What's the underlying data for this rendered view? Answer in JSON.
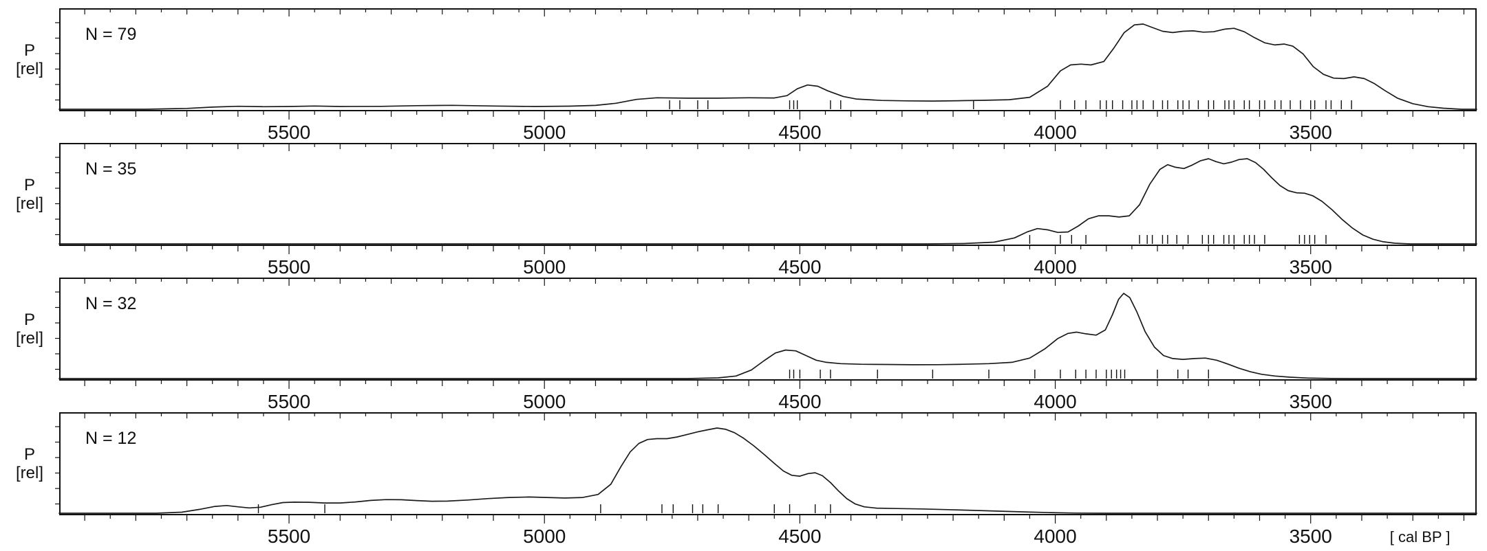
{
  "figure": {
    "xlabel": "[ cal BP ]",
    "ylabel_line1": "P",
    "ylabel_line2": "[rel]",
    "x_min": 5950,
    "x_max": 3175,
    "x_major_ticks": [
      5500,
      5000,
      4500,
      4000,
      3500
    ],
    "minor_tick_step": 50,
    "curve_color": "#1a1a1a",
    "axis_color": "#111111"
  },
  "chart_data": [
    {
      "type": "area",
      "n_label": "N = 79",
      "n": 79,
      "curve": [
        [
          5950,
          0
        ],
        [
          5780,
          0
        ],
        [
          5700,
          0.01
        ],
        [
          5650,
          0.025
        ],
        [
          5600,
          0.035
        ],
        [
          5550,
          0.03
        ],
        [
          5500,
          0.032
        ],
        [
          5450,
          0.038
        ],
        [
          5400,
          0.032
        ],
        [
          5320,
          0.034
        ],
        [
          5250,
          0.042
        ],
        [
          5180,
          0.046
        ],
        [
          5100,
          0.038
        ],
        [
          5020,
          0.032
        ],
        [
          4950,
          0.036
        ],
        [
          4900,
          0.045
        ],
        [
          4860,
          0.07
        ],
        [
          4820,
          0.115
        ],
        [
          4780,
          0.135
        ],
        [
          4720,
          0.13
        ],
        [
          4660,
          0.13
        ],
        [
          4600,
          0.135
        ],
        [
          4550,
          0.132
        ],
        [
          4525,
          0.16
        ],
        [
          4505,
          0.24
        ],
        [
          4485,
          0.285
        ],
        [
          4465,
          0.27
        ],
        [
          4445,
          0.215
        ],
        [
          4415,
          0.15
        ],
        [
          4390,
          0.12
        ],
        [
          4340,
          0.103
        ],
        [
          4290,
          0.098
        ],
        [
          4240,
          0.096
        ],
        [
          4190,
          0.1
        ],
        [
          4140,
          0.105
        ],
        [
          4090,
          0.112
        ],
        [
          4050,
          0.14
        ],
        [
          4015,
          0.27
        ],
        [
          3990,
          0.45
        ],
        [
          3970,
          0.52
        ],
        [
          3950,
          0.53
        ],
        [
          3930,
          0.52
        ],
        [
          3905,
          0.56
        ],
        [
          3885,
          0.72
        ],
        [
          3865,
          0.9
        ],
        [
          3845,
          0.99
        ],
        [
          3828,
          1.0
        ],
        [
          3810,
          0.96
        ],
        [
          3790,
          0.915
        ],
        [
          3770,
          0.9
        ],
        [
          3750,
          0.915
        ],
        [
          3730,
          0.92
        ],
        [
          3710,
          0.905
        ],
        [
          3690,
          0.91
        ],
        [
          3668,
          0.94
        ],
        [
          3650,
          0.95
        ],
        [
          3630,
          0.91
        ],
        [
          3610,
          0.84
        ],
        [
          3590,
          0.78
        ],
        [
          3570,
          0.755
        ],
        [
          3552,
          0.765
        ],
        [
          3535,
          0.74
        ],
        [
          3515,
          0.65
        ],
        [
          3495,
          0.5
        ],
        [
          3475,
          0.41
        ],
        [
          3455,
          0.365
        ],
        [
          3435,
          0.36
        ],
        [
          3415,
          0.38
        ],
        [
          3395,
          0.36
        ],
        [
          3375,
          0.3
        ],
        [
          3355,
          0.22
        ],
        [
          3330,
          0.13
        ],
        [
          3300,
          0.065
        ],
        [
          3270,
          0.03
        ],
        [
          3240,
          0.012
        ],
        [
          3205,
          0
        ],
        [
          3175,
          0
        ]
      ],
      "rug": [
        4755,
        4735,
        4700,
        4680,
        4520,
        4512,
        4505,
        4440,
        4420,
        4160,
        3990,
        3962,
        3940,
        3912,
        3900,
        3888,
        3868,
        3850,
        3840,
        3828,
        3808,
        3790,
        3780,
        3760,
        3750,
        3738,
        3720,
        3700,
        3690,
        3668,
        3660,
        3650,
        3630,
        3620,
        3600,
        3590,
        3570,
        3558,
        3540,
        3520,
        3500,
        3492,
        3470,
        3460,
        3440,
        3420
      ]
    },
    {
      "type": "area",
      "n_label": "N = 35",
      "n": 35,
      "curve": [
        [
          5950,
          0
        ],
        [
          4250,
          0
        ],
        [
          4180,
          0.004
        ],
        [
          4120,
          0.02
        ],
        [
          4080,
          0.07
        ],
        [
          4055,
          0.14
        ],
        [
          4035,
          0.18
        ],
        [
          4015,
          0.165
        ],
        [
          3995,
          0.135
        ],
        [
          3975,
          0.14
        ],
        [
          3955,
          0.21
        ],
        [
          3935,
          0.295
        ],
        [
          3915,
          0.33
        ],
        [
          3895,
          0.33
        ],
        [
          3875,
          0.315
        ],
        [
          3855,
          0.33
        ],
        [
          3835,
          0.46
        ],
        [
          3815,
          0.7
        ],
        [
          3795,
          0.875
        ],
        [
          3780,
          0.93
        ],
        [
          3765,
          0.9
        ],
        [
          3748,
          0.885
        ],
        [
          3732,
          0.925
        ],
        [
          3716,
          0.975
        ],
        [
          3700,
          1.0
        ],
        [
          3685,
          0.965
        ],
        [
          3670,
          0.94
        ],
        [
          3655,
          0.96
        ],
        [
          3640,
          0.99
        ],
        [
          3624,
          1.0
        ],
        [
          3608,
          0.955
        ],
        [
          3592,
          0.875
        ],
        [
          3576,
          0.775
        ],
        [
          3560,
          0.685
        ],
        [
          3544,
          0.625
        ],
        [
          3528,
          0.6
        ],
        [
          3512,
          0.595
        ],
        [
          3496,
          0.565
        ],
        [
          3478,
          0.5
        ],
        [
          3458,
          0.4
        ],
        [
          3438,
          0.285
        ],
        [
          3418,
          0.185
        ],
        [
          3398,
          0.105
        ],
        [
          3378,
          0.055
        ],
        [
          3358,
          0.025
        ],
        [
          3335,
          0.008
        ],
        [
          3305,
          0
        ],
        [
          3175,
          0
        ]
      ],
      "rug": [
        4050,
        3990,
        3968,
        3940,
        3835,
        3820,
        3810,
        3790,
        3780,
        3762,
        3740,
        3712,
        3700,
        3690,
        3670,
        3660,
        3650,
        3630,
        3620,
        3610,
        3590,
        3522,
        3512,
        3502,
        3492,
        3470
      ]
    },
    {
      "type": "area",
      "n_label": "N = 32",
      "n": 32,
      "curve": [
        [
          5950,
          0
        ],
        [
          4720,
          0
        ],
        [
          4660,
          0.008
        ],
        [
          4625,
          0.03
        ],
        [
          4595,
          0.1
        ],
        [
          4570,
          0.21
        ],
        [
          4548,
          0.3
        ],
        [
          4528,
          0.335
        ],
        [
          4508,
          0.325
        ],
        [
          4488,
          0.27
        ],
        [
          4468,
          0.215
        ],
        [
          4448,
          0.19
        ],
        [
          4420,
          0.175
        ],
        [
          4380,
          0.168
        ],
        [
          4330,
          0.165
        ],
        [
          4280,
          0.162
        ],
        [
          4230,
          0.163
        ],
        [
          4180,
          0.168
        ],
        [
          4130,
          0.175
        ],
        [
          4085,
          0.19
        ],
        [
          4050,
          0.24
        ],
        [
          4020,
          0.35
        ],
        [
          3995,
          0.47
        ],
        [
          3975,
          0.53
        ],
        [
          3958,
          0.545
        ],
        [
          3940,
          0.525
        ],
        [
          3920,
          0.51
        ],
        [
          3902,
          0.57
        ],
        [
          3888,
          0.75
        ],
        [
          3876,
          0.93
        ],
        [
          3866,
          1.0
        ],
        [
          3854,
          0.95
        ],
        [
          3840,
          0.78
        ],
        [
          3824,
          0.55
        ],
        [
          3806,
          0.37
        ],
        [
          3788,
          0.27
        ],
        [
          3770,
          0.235
        ],
        [
          3750,
          0.225
        ],
        [
          3728,
          0.235
        ],
        [
          3706,
          0.24
        ],
        [
          3684,
          0.215
        ],
        [
          3662,
          0.17
        ],
        [
          3640,
          0.12
        ],
        [
          3618,
          0.08
        ],
        [
          3596,
          0.05
        ],
        [
          3570,
          0.03
        ],
        [
          3540,
          0.016
        ],
        [
          3505,
          0.006
        ],
        [
          3460,
          0.001
        ],
        [
          3420,
          0
        ],
        [
          3175,
          0
        ]
      ],
      "rug": [
        4520,
        4512,
        4500,
        4460,
        4440,
        4348,
        4240,
        4130,
        4040,
        3990,
        3960,
        3940,
        3920,
        3900,
        3890,
        3880,
        3872,
        3864,
        3800,
        3760,
        3740,
        3700
      ]
    },
    {
      "type": "area",
      "n_label": "N = 12",
      "n": 12,
      "curve": [
        [
          5950,
          0
        ],
        [
          5760,
          0
        ],
        [
          5710,
          0.012
        ],
        [
          5675,
          0.045
        ],
        [
          5645,
          0.08
        ],
        [
          5622,
          0.09
        ],
        [
          5600,
          0.075
        ],
        [
          5578,
          0.062
        ],
        [
          5556,
          0.07
        ],
        [
          5534,
          0.1
        ],
        [
          5512,
          0.125
        ],
        [
          5490,
          0.13
        ],
        [
          5460,
          0.128
        ],
        [
          5430,
          0.12
        ],
        [
          5400,
          0.12
        ],
        [
          5370,
          0.132
        ],
        [
          5340,
          0.15
        ],
        [
          5310,
          0.16
        ],
        [
          5280,
          0.158
        ],
        [
          5250,
          0.148
        ],
        [
          5220,
          0.14
        ],
        [
          5190,
          0.142
        ],
        [
          5150,
          0.155
        ],
        [
          5110,
          0.172
        ],
        [
          5070,
          0.185
        ],
        [
          5030,
          0.19
        ],
        [
          4995,
          0.185
        ],
        [
          4960,
          0.178
        ],
        [
          4925,
          0.185
        ],
        [
          4895,
          0.22
        ],
        [
          4870,
          0.34
        ],
        [
          4850,
          0.55
        ],
        [
          4832,
          0.72
        ],
        [
          4815,
          0.82
        ],
        [
          4798,
          0.865
        ],
        [
          4780,
          0.875
        ],
        [
          4760,
          0.875
        ],
        [
          4740,
          0.895
        ],
        [
          4720,
          0.925
        ],
        [
          4700,
          0.955
        ],
        [
          4680,
          0.98
        ],
        [
          4662,
          1.0
        ],
        [
          4645,
          0.985
        ],
        [
          4628,
          0.945
        ],
        [
          4610,
          0.88
        ],
        [
          4590,
          0.79
        ],
        [
          4570,
          0.69
        ],
        [
          4550,
          0.585
        ],
        [
          4532,
          0.495
        ],
        [
          4516,
          0.445
        ],
        [
          4500,
          0.435
        ],
        [
          4484,
          0.465
        ],
        [
          4470,
          0.475
        ],
        [
          4456,
          0.44
        ],
        [
          4440,
          0.36
        ],
        [
          4424,
          0.26
        ],
        [
          4408,
          0.17
        ],
        [
          4392,
          0.11
        ],
        [
          4374,
          0.075
        ],
        [
          4350,
          0.06
        ],
        [
          4310,
          0.055
        ],
        [
          4260,
          0.05
        ],
        [
          4210,
          0.042
        ],
        [
          4160,
          0.033
        ],
        [
          4110,
          0.024
        ],
        [
          4060,
          0.015
        ],
        [
          4010,
          0.007
        ],
        [
          3960,
          0.002
        ],
        [
          3910,
          0
        ],
        [
          3175,
          0
        ]
      ],
      "rug": [
        5560,
        5430,
        4890,
        4770,
        4748,
        4710,
        4690,
        4660,
        4550,
        4520,
        4470,
        4440
      ]
    }
  ]
}
